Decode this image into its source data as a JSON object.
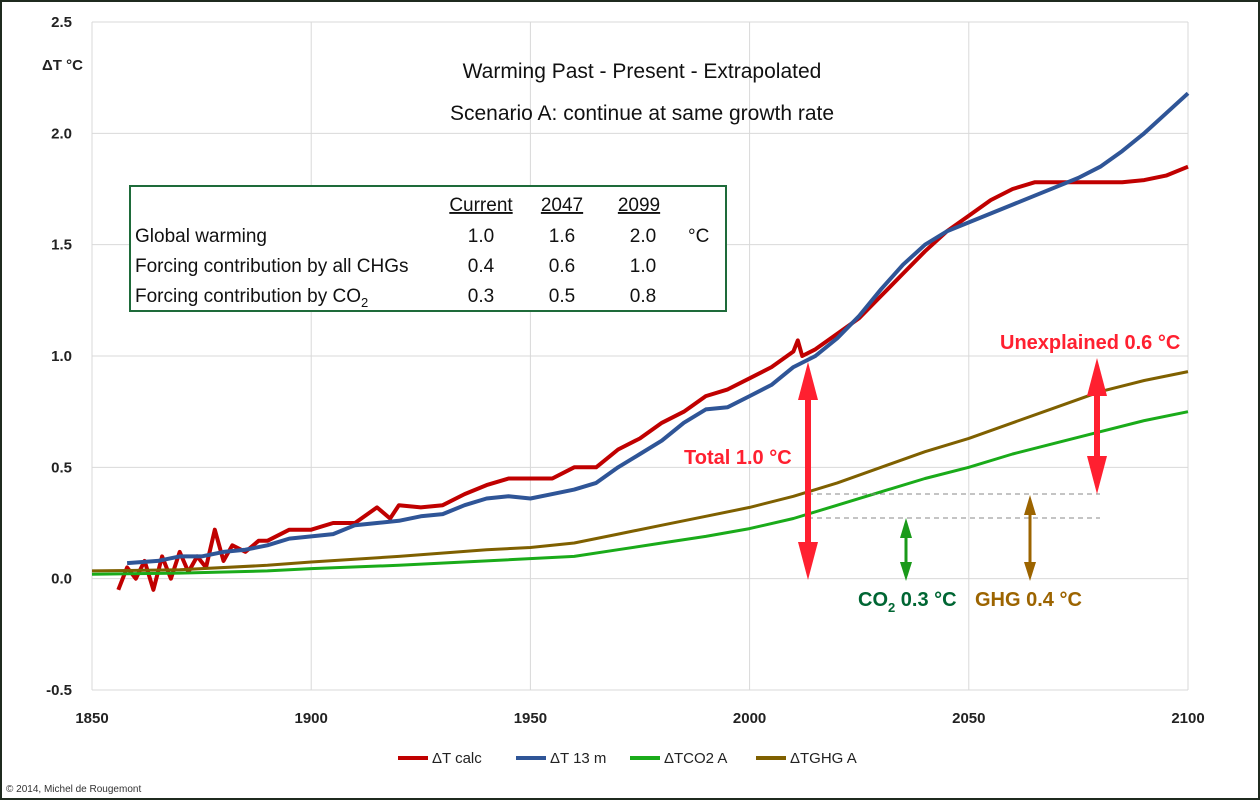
{
  "chart_data": {
    "type": "line",
    "title": "Warming Past - Present - Extrapolated",
    "subtitle": "Scenario A: continue at same growth rate",
    "ylabel": "ΔT °C",
    "xlabel": "",
    "xlim": [
      1850,
      2100
    ],
    "ylim": [
      -0.5,
      2.5
    ],
    "x_ticks": [
      "1850",
      "1900",
      "1950",
      "2000",
      "2050",
      "2100"
    ],
    "y_ticks": [
      "-0.5",
      "0.0",
      "0.5",
      "1.0",
      "1.5",
      "2.0",
      "2.5"
    ],
    "grid": true,
    "legend_position": "bottom",
    "series": [
      {
        "name": "ΔT calc",
        "color": "#c00000",
        "width": 4,
        "x": [
          1856,
          1858,
          1860,
          1862,
          1864,
          1866,
          1868,
          1870,
          1872,
          1874,
          1876,
          1878,
          1880,
          1882,
          1885,
          1888,
          1890,
          1895,
          1900,
          1905,
          1910,
          1915,
          1918,
          1920,
          1925,
          1930,
          1935,
          1940,
          1945,
          1950,
          1955,
          1960,
          1965,
          1970,
          1975,
          1980,
          1985,
          1990,
          1995,
          2000,
          2005,
          2010,
          2011,
          2012,
          2015,
          2020,
          2025,
          2030,
          2035,
          2040,
          2045,
          2050,
          2055,
          2060,
          2065,
          2070,
          2075,
          2080,
          2085,
          2090,
          2095,
          2100
        ],
        "y": [
          -0.05,
          0.05,
          0.0,
          0.08,
          -0.05,
          0.1,
          0.0,
          0.12,
          0.03,
          0.1,
          0.05,
          0.22,
          0.08,
          0.15,
          0.12,
          0.17,
          0.17,
          0.22,
          0.22,
          0.25,
          0.25,
          0.32,
          0.27,
          0.33,
          0.32,
          0.33,
          0.38,
          0.42,
          0.45,
          0.45,
          0.45,
          0.5,
          0.5,
          0.58,
          0.63,
          0.7,
          0.75,
          0.82,
          0.85,
          0.9,
          0.95,
          1.02,
          1.07,
          1.0,
          1.03,
          1.1,
          1.17,
          1.27,
          1.37,
          1.47,
          1.56,
          1.63,
          1.7,
          1.75,
          1.78,
          1.78,
          1.78,
          1.78,
          1.78,
          1.79,
          1.81,
          1.85
        ]
      },
      {
        "name": "ΔT 13 m",
        "color": "#2f5597",
        "width": 4,
        "x": [
          1858,
          1865,
          1870,
          1875,
          1880,
          1885,
          1890,
          1895,
          1900,
          1905,
          1910,
          1915,
          1920,
          1925,
          1930,
          1935,
          1940,
          1945,
          1950,
          1955,
          1960,
          1965,
          1970,
          1975,
          1980,
          1985,
          1990,
          1995,
          2000,
          2005,
          2010,
          2015,
          2020,
          2025,
          2030,
          2035,
          2040,
          2045,
          2050,
          2055,
          2060,
          2065,
          2070,
          2075,
          2080,
          2085,
          2090,
          2095,
          2100
        ],
        "y": [
          0.07,
          0.08,
          0.1,
          0.1,
          0.12,
          0.13,
          0.15,
          0.18,
          0.19,
          0.2,
          0.24,
          0.25,
          0.26,
          0.28,
          0.29,
          0.33,
          0.36,
          0.37,
          0.36,
          0.38,
          0.4,
          0.43,
          0.5,
          0.56,
          0.62,
          0.7,
          0.76,
          0.77,
          0.82,
          0.87,
          0.95,
          1.0,
          1.08,
          1.18,
          1.3,
          1.41,
          1.5,
          1.56,
          1.6,
          1.64,
          1.68,
          1.72,
          1.76,
          1.8,
          1.85,
          1.92,
          2.0,
          2.09,
          2.18
        ]
      },
      {
        "name": "ΔTCO2 A",
        "color": "#1aab1a",
        "width": 3,
        "x": [
          1850,
          1870,
          1890,
          1900,
          1920,
          1940,
          1960,
          1970,
          1980,
          1990,
          2000,
          2010,
          2020,
          2030,
          2040,
          2050,
          2060,
          2070,
          2080,
          2090,
          2100
        ],
        "y": [
          0.02,
          0.025,
          0.035,
          0.045,
          0.06,
          0.08,
          0.1,
          0.13,
          0.16,
          0.19,
          0.225,
          0.27,
          0.33,
          0.39,
          0.45,
          0.5,
          0.56,
          0.61,
          0.66,
          0.71,
          0.75
        ]
      },
      {
        "name": "ΔTGHG A",
        "color": "#7f6000",
        "width": 3,
        "x": [
          1850,
          1870,
          1890,
          1900,
          1920,
          1940,
          1950,
          1960,
          1970,
          1980,
          1990,
          2000,
          2010,
          2020,
          2030,
          2040,
          2050,
          2060,
          2070,
          2080,
          2090,
          2100
        ],
        "y": [
          0.035,
          0.04,
          0.06,
          0.075,
          0.1,
          0.13,
          0.14,
          0.16,
          0.2,
          0.24,
          0.28,
          0.32,
          0.37,
          0.43,
          0.5,
          0.57,
          0.63,
          0.7,
          0.77,
          0.84,
          0.89,
          0.93
        ]
      }
    ],
    "table": {
      "headers": [
        "Current",
        "2047",
        "2099"
      ],
      "rows": [
        {
          "label": "Global warming",
          "values": [
            "1.0",
            "1.6",
            "2.0"
          ],
          "unit": "°C"
        },
        {
          "label": "Forcing contribution by all CHGs",
          "values": [
            "0.4",
            "0.6",
            "1.0"
          ],
          "unit": ""
        },
        {
          "label_main": "Forcing contribution by CO",
          "label_sub": "2",
          "values": [
            "0.3",
            "0.5",
            "0.8"
          ],
          "unit": ""
        }
      ]
    },
    "annotations": {
      "total": "Total 1.0 °C",
      "unexplained": "Unexplained 0.6 °C",
      "co2_main": "CO",
      "co2_sub": "2",
      "co2_value": " 0.3 °C",
      "ghg": "GHG  0.4 °C",
      "total_color": "#ff2030",
      "co2_color": "#006633",
      "ghg_color": "#9c6400"
    },
    "copyright": "© 2014, Michel de Rougemont"
  }
}
